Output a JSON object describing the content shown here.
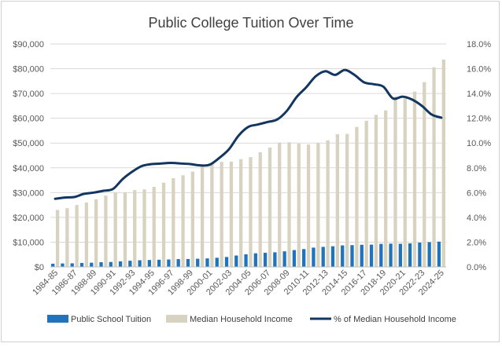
{
  "chart_data": {
    "type": "bar",
    "title": "Public College Tuition Over Time",
    "categories": [
      "1984-85",
      "1985-86",
      "1986-87",
      "1987-88",
      "1988-89",
      "1989-90",
      "1990-91",
      "1991-92",
      "1992-93",
      "1993-94",
      "1994-95",
      "1995-96",
      "1996-97",
      "1997-98",
      "1998-99",
      "1999-00",
      "2000-01",
      "2001-02",
      "2002-03",
      "2003-04",
      "2004-05",
      "2005-06",
      "2006-07",
      "2007-08",
      "2008-09",
      "2009-10",
      "2010-11",
      "2011-12",
      "2012-13",
      "2013-14",
      "2014-15",
      "2015-16",
      "2016-17",
      "2017-18",
      "2018-19",
      "2019-20",
      "2020-21",
      "2021-22",
      "2022-23",
      "2023-24",
      "2024-25"
    ],
    "series": [
      {
        "name": "Public School Tuition",
        "type": "bar",
        "axis": "left",
        "color": "#1f74bd",
        "values": [
          1300,
          1400,
          1450,
          1600,
          1700,
          1900,
          2000,
          2250,
          2500,
          2700,
          2800,
          2900,
          3000,
          3150,
          3200,
          3300,
          3450,
          3700,
          4000,
          4600,
          5100,
          5500,
          5700,
          5900,
          6300,
          6800,
          7200,
          7800,
          8100,
          8350,
          8700,
          8800,
          8950,
          9000,
          9300,
          9400,
          9350,
          9500,
          9800,
          10000,
          10200
        ]
      },
      {
        "name": "Median Household Income",
        "type": "bar",
        "axis": "left",
        "color": "#d8d3c0",
        "values": [
          23000,
          23700,
          25000,
          26000,
          27300,
          28800,
          30000,
          30100,
          31000,
          31300,
          32300,
          34000,
          35800,
          37000,
          38500,
          40600,
          42000,
          42400,
          42500,
          43500,
          44300,
          46300,
          48200,
          50200,
          50300,
          49800,
          49400,
          50100,
          51100,
          53600,
          53700,
          56500,
          59000,
          61400,
          63200,
          68700,
          68000,
          70800,
          74600,
          80600,
          83700
        ]
      },
      {
        "name": "% of Median Household Income",
        "type": "line",
        "axis": "right",
        "color": "#12365f",
        "values": [
          5.5,
          5.6,
          5.65,
          5.9,
          6.0,
          6.15,
          6.3,
          7.1,
          7.7,
          8.15,
          8.3,
          8.35,
          8.4,
          8.35,
          8.3,
          8.2,
          8.25,
          8.8,
          9.5,
          10.6,
          11.3,
          11.5,
          11.7,
          11.9,
          12.6,
          13.7,
          14.5,
          15.4,
          15.8,
          15.5,
          15.9,
          15.5,
          14.9,
          14.75,
          14.55,
          13.6,
          13.75,
          13.5,
          13.0,
          12.3,
          12.05
        ]
      }
    ],
    "y_left": {
      "min": 0,
      "max": 90000,
      "step": 10000,
      "tick_labels": [
        "$0",
        "$10,000",
        "$20,000",
        "$30,000",
        "$40,000",
        "$50,000",
        "$60,000",
        "$70,000",
        "$80,000",
        "$90,000"
      ]
    },
    "y_right": {
      "min": 0,
      "max": 18,
      "step": 2,
      "tick_labels": [
        "0.0%",
        "2.0%",
        "4.0%",
        "6.0%",
        "8.0%",
        "10.0%",
        "12.0%",
        "14.0%",
        "16.0%",
        "18.0%"
      ]
    },
    "x_tick_every": 2,
    "gridlines": true,
    "legend_position": "bottom",
    "gridline_color": "#d9d9d9"
  }
}
